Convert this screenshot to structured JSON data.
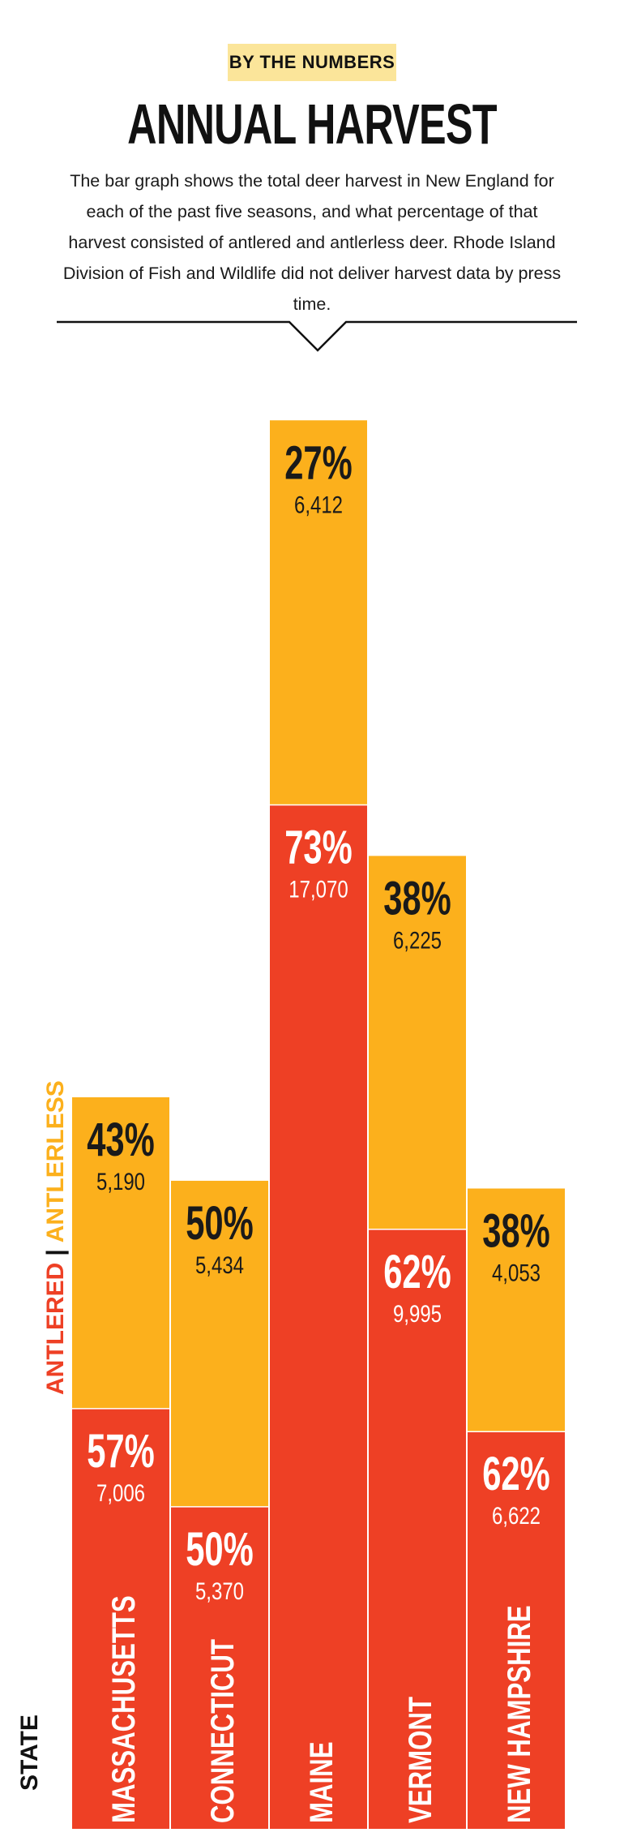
{
  "header": {
    "badge": "BY THE NUMBERS",
    "title": "ANNUAL HARVEST",
    "description": "The bar graph shows the total deer harvest in New England for each of the past five seasons, and what percentage of that harvest consisted of antlered and antlerless deer. Rhode Island Division of Fish and Wildlife did not deliver harvest data by press time."
  },
  "legend": {
    "antlered": "ANTLERED",
    "separator": "|",
    "antlerless": "ANTLERLESS"
  },
  "axis_label": "STATE",
  "colors": {
    "antlered": "#ee4025",
    "antlerless": "#fcb01c",
    "badge": "#fbe59a",
    "text": "#111111"
  },
  "chart_data": {
    "type": "bar",
    "stacked": true,
    "orientation": "vertical",
    "categories": [
      "MASSACHUSETTS",
      "CONNECTICUT",
      "MAINE",
      "VERMONT",
      "NEW HAMPSHIRE"
    ],
    "series": [
      {
        "name": "ANTLERED",
        "values": [
          7006,
          5370,
          17070,
          9995,
          6622
        ],
        "labels": [
          "7,006",
          "5,370",
          "17,070",
          "9,995",
          "6,622"
        ],
        "percents": [
          "57%",
          "50%",
          "73%",
          "62%",
          "62%"
        ]
      },
      {
        "name": "ANTLERLESS",
        "values": [
          5190,
          5434,
          6412,
          6225,
          4053
        ],
        "labels": [
          "5,190",
          "5,434",
          "6,412",
          "6,225",
          "4,053"
        ],
        "percents": [
          "43%",
          "50%",
          "27%",
          "38%",
          "38%"
        ]
      }
    ],
    "xlabel": "STATE",
    "legend_position": "left",
    "grid": false
  }
}
